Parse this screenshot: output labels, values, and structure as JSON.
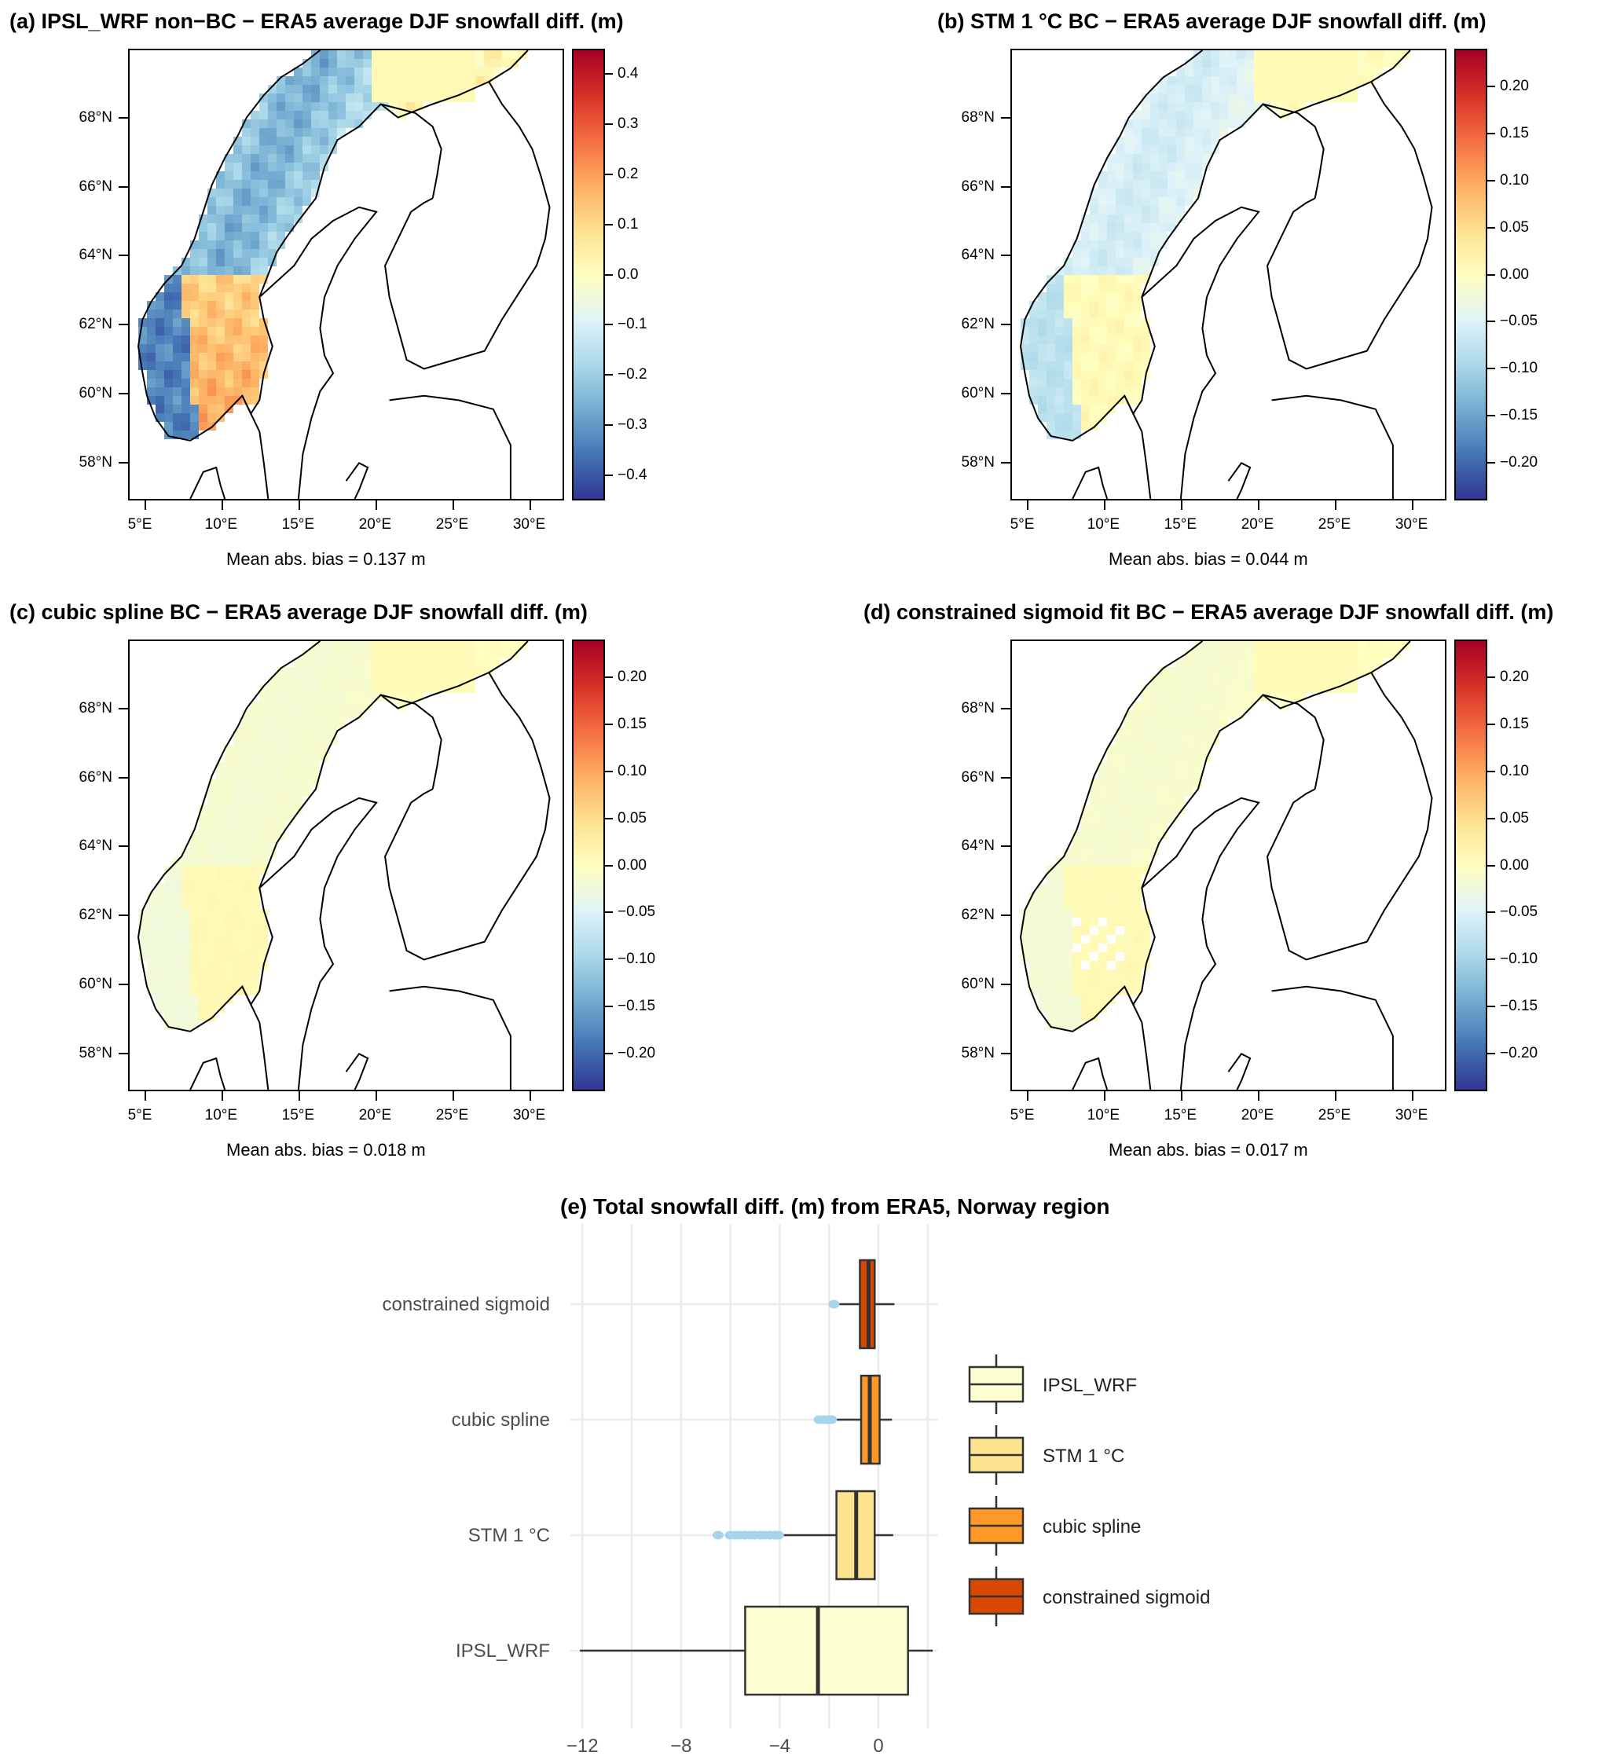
{
  "maps": [
    {
      "id": "a",
      "title": "(a) IPSL_WRF non−BC − ERA5 average DJF snowfall diff. (m)",
      "bias_label": "Mean abs. bias = 0.137 m",
      "colorbar": {
        "range": [
          -0.45,
          0.45
        ],
        "ticks": [
          "0.4",
          "0.3",
          "0.2",
          "0.1",
          "0.0",
          "−0.1",
          "−0.2",
          "−0.3",
          "−0.4"
        ],
        "tick_values": [
          0.4,
          0.3,
          0.2,
          0.1,
          0.0,
          -0.1,
          -0.2,
          -0.3,
          -0.4
        ]
      },
      "pattern": "strong"
    },
    {
      "id": "b",
      "title": "(b) STM 1 °C BC − ERA5 average DJF snowfall diff. (m)",
      "bias_label": "Mean abs. bias = 0.044 m",
      "colorbar": {
        "range": [
          -0.24,
          0.24
        ],
        "ticks": [
          "0.20",
          "0.15",
          "0.10",
          "0.05",
          "0.00",
          "−0.05",
          "−0.10",
          "−0.15",
          "−0.20"
        ],
        "tick_values": [
          0.2,
          0.15,
          0.1,
          0.05,
          0.0,
          -0.05,
          -0.1,
          -0.15,
          -0.2
        ]
      },
      "pattern": "medium"
    },
    {
      "id": "c",
      "title": "(c) cubic spline BC − ERA5 average DJF snowfall diff. (m)",
      "bias_label": "Mean abs. bias = 0.018 m",
      "colorbar": {
        "range": [
          -0.24,
          0.24
        ],
        "ticks": [
          "0.20",
          "0.15",
          "0.10",
          "0.05",
          "0.00",
          "−0.05",
          "−0.10",
          "−0.15",
          "−0.20"
        ],
        "tick_values": [
          0.2,
          0.15,
          0.1,
          0.05,
          0.0,
          -0.05,
          -0.1,
          -0.15,
          -0.2
        ]
      },
      "pattern": "weak"
    },
    {
      "id": "d",
      "title": "(d) constrained sigmoid fit BC − ERA5 average DJF snowfall diff. (m)",
      "bias_label": "Mean abs. bias = 0.017 m",
      "colorbar": {
        "range": [
          -0.24,
          0.24
        ],
        "ticks": [
          "0.20",
          "0.15",
          "0.10",
          "0.05",
          "0.00",
          "−0.05",
          "−0.10",
          "−0.15",
          "−0.20"
        ],
        "tick_values": [
          0.2,
          0.15,
          0.1,
          0.05,
          0.0,
          -0.05,
          -0.1,
          -0.15,
          -0.2
        ]
      },
      "pattern": "weakest"
    }
  ],
  "map_axes": {
    "lat_ticks": [
      "68°N",
      "66°N",
      "64°N",
      "62°N",
      "60°N",
      "58°N"
    ],
    "lat_values": [
      68,
      66,
      64,
      62,
      60,
      58
    ],
    "lon_ticks": [
      "5°E",
      "10°E",
      "15°E",
      "20°E",
      "25°E",
      "30°E"
    ],
    "lon_values": [
      5,
      10,
      15,
      20,
      25,
      30
    ],
    "lat_range": [
      56.9,
      70.0
    ],
    "lon_range": [
      3.9,
      32.2
    ]
  },
  "colormap": [
    "#313695",
    "#4575b4",
    "#74add1",
    "#abd9e9",
    "#e0f3f8",
    "#ffffbf",
    "#fee090",
    "#fdae61",
    "#f46d43",
    "#d73027",
    "#a50026"
  ],
  "chart_data": {
    "type": "boxplot",
    "title": "(e) Total snowfall diff. (m) from ERA5, Norway region",
    "xlabel": "",
    "ylabel": "",
    "xlim": [
      -12.5,
      2.4
    ],
    "x_ticks": [
      -12,
      -8,
      -4,
      0
    ],
    "x_tick_labels": [
      "−12",
      "−8",
      "−4",
      "0"
    ],
    "minor_grid": [
      -10,
      -6,
      -2,
      2
    ],
    "grid": true,
    "legend_position": "right",
    "series": [
      {
        "name": "constrained sigmoid",
        "color": "#d94801",
        "q1": -0.75,
        "median": -0.4,
        "q3": -0.15,
        "whisker_low": -1.65,
        "whisker_high": 0.65,
        "outliers": [
          -1.8
        ]
      },
      {
        "name": "cubic spline",
        "color": "#fe9929",
        "q1": -0.7,
        "median": -0.35,
        "q3": 0.05,
        "whisker_low": -1.7,
        "whisker_high": 0.55,
        "outliers": [
          -2.4,
          -2.2,
          -2.05,
          -1.9
        ]
      },
      {
        "name": "STM 1 °C",
        "color": "#fee391",
        "q1": -1.7,
        "median": -0.9,
        "q3": -0.15,
        "whisker_low": -3.95,
        "whisker_high": 0.6,
        "outliers": [
          -6.5,
          -6.0,
          -5.8,
          -5.6,
          -5.4,
          -5.2,
          -5.0,
          -4.8,
          -4.6,
          -4.4,
          -4.2,
          -4.05
        ]
      },
      {
        "name": "IPSL_WRF",
        "color": "#ffffd4",
        "q1": -5.4,
        "median": -2.45,
        "q3": 1.2,
        "whisker_low": -12.1,
        "whisker_high": 2.2,
        "outliers": []
      }
    ],
    "outlier_color": "#a6d4ec",
    "legend": [
      "IPSL_WRF",
      "STM 1 °C",
      "cubic spline",
      "constrained sigmoid"
    ]
  }
}
